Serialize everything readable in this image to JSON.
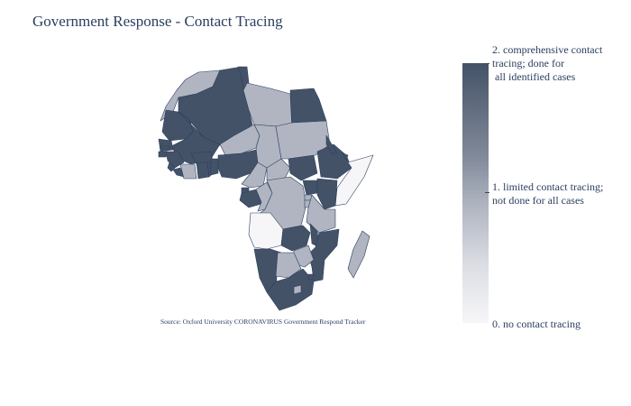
{
  "title": "Government Response - Contact Tracing",
  "source": "Source:  Oxford University CORONAVIRUS Government Respond Tracker",
  "legend": {
    "colorscale": [
      "#f6f6f8",
      "#b0b5c1",
      "#445267"
    ],
    "levels": [
      {
        "value": 2,
        "line1": "2. comprehensive contact",
        "line2": "tracing; done for",
        "line3": " all identified cases"
      },
      {
        "value": 1,
        "line1": "1. limited contact tracing;",
        "line2": "not done for all cases"
      },
      {
        "value": 0,
        "line1": "0. no contact tracing"
      }
    ]
  },
  "countries": {
    "Morocco": 1,
    "Algeria": 2,
    "Tunisia": 2,
    "Libya": 1,
    "Egypt": 2,
    "Mauritania": 2,
    "Mali": 2,
    "Niger": 1,
    "Chad": 1,
    "Sudan": 1,
    "Senegal": 2,
    "Gambia": 2,
    "Guinea-Bissau": 2,
    "Guinea": 2,
    "Sierra Leone": 2,
    "Liberia": 2,
    "Cote d'Ivoire": 1,
    "Burkina Faso": 2,
    "Ghana": 2,
    "Togo": 2,
    "Benin": 2,
    "Nigeria": 2,
    "Cameroon": 1,
    "Central African Republic": 1,
    "South Sudan": 2,
    "Ethiopia": 2,
    "Eritrea": 2,
    "Djibouti": 2,
    "Somalia": 0,
    "Equatorial Guinea": 2,
    "Gabon": 2,
    "Republic of Congo": 1,
    "DR Congo": 1,
    "Uganda": 2,
    "Kenya": 2,
    "Rwanda": 1,
    "Burundi": 1,
    "Tanzania": 1,
    "Angola": 0,
    "Zambia": 2,
    "Malawi": 2,
    "Mozambique": 2,
    "Zimbabwe": 1,
    "Namibia": 2,
    "Botswana": 1,
    "South Africa": 2,
    "Lesotho": 1,
    "Eswatini": 2,
    "Madagascar": 1
  }
}
